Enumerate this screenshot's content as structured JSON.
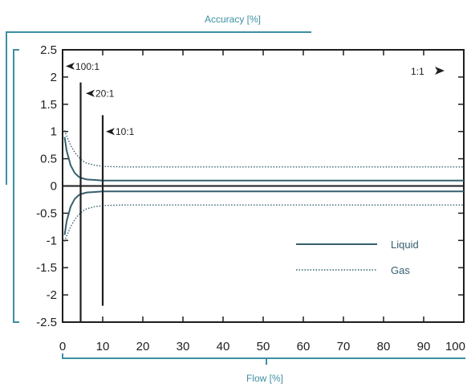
{
  "chart_data": {
    "type": "line",
    "xlabel": "Flow [%]",
    "ylabel": "Accuracy [%]",
    "xlim": [
      0,
      100
    ],
    "ylim": [
      -2.5,
      2.5
    ],
    "x_ticks": [
      "0",
      "10",
      "20",
      "30",
      "40",
      "50",
      "60",
      "70",
      "80",
      "90",
      "100"
    ],
    "y_ticks": [
      "2.5",
      "2",
      "1.5",
      "1",
      "0.5",
      "0",
      "-0.5",
      "-1",
      "-1.5",
      "-2",
      "-2.5"
    ],
    "grid": false,
    "legend_position": "bottom-right",
    "series": [
      {
        "name": "Liquid",
        "style": "solid",
        "x": [
          0.5,
          1,
          2,
          3,
          4,
          5,
          6,
          8,
          10,
          15,
          20,
          40,
          60,
          80,
          100
        ],
        "upper": [
          0.9,
          0.65,
          0.38,
          0.24,
          0.17,
          0.14,
          0.12,
          0.11,
          0.1,
          0.1,
          0.1,
          0.1,
          0.1,
          0.1,
          0.1
        ],
        "lower": [
          -0.9,
          -0.65,
          -0.38,
          -0.24,
          -0.17,
          -0.14,
          -0.12,
          -0.11,
          -0.1,
          -0.1,
          -0.1,
          -0.1,
          -0.1,
          -0.1,
          -0.1
        ]
      },
      {
        "name": "Gas",
        "style": "dotted",
        "x": [
          0.5,
          1,
          2,
          3,
          4,
          5,
          6,
          8,
          10,
          15,
          20,
          40,
          60,
          80,
          100
        ],
        "upper": [
          1.02,
          0.92,
          0.75,
          0.62,
          0.53,
          0.46,
          0.42,
          0.38,
          0.36,
          0.35,
          0.35,
          0.35,
          0.35,
          0.35,
          0.35
        ],
        "lower": [
          -1.02,
          -0.92,
          -0.75,
          -0.62,
          -0.53,
          -0.46,
          -0.42,
          -0.38,
          -0.36,
          -0.35,
          -0.35,
          -0.35,
          -0.35,
          -0.35,
          -0.35
        ]
      }
    ],
    "turndown_markers": [
      {
        "label": "100:1",
        "x": 4.5,
        "y_top": 1.9,
        "y_bottom": -2.5,
        "label_y": 2.2
      },
      {
        "label": "20:1",
        "x": 5.0,
        "y_top": 1.9,
        "y_bottom": -2.5,
        "label_y": 1.7,
        "hidden_line": true
      },
      {
        "label": "10:1",
        "x": 10,
        "y_top": 1.3,
        "y_bottom": -2.2,
        "label_y": 1.0
      }
    ],
    "range_label": "1:1",
    "colors": {
      "liquid": "#35606e",
      "gas": "#35606e",
      "accent": "#3d8fa3",
      "frame": "#1e1e1e"
    }
  }
}
